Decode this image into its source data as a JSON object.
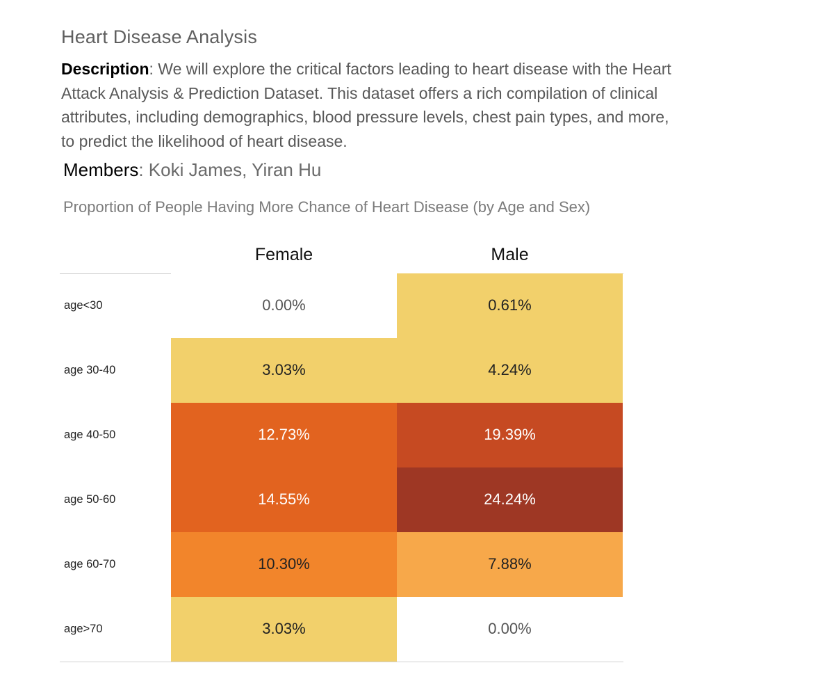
{
  "title": "Heart Disease Analysis",
  "description": {
    "label": "Description",
    "text": ": We will explore the critical factors leading to heart disease with the Heart Attack Analysis & Prediction Dataset. This dataset offers a rich compilation of clinical attributes, including demographics, blood pressure levels, chest pain types, and more, to predict the likelihood of heart disease."
  },
  "members": {
    "label": "Members",
    "text": ": Koki James, Yiran Hu"
  },
  "chart_data": {
    "type": "heatmap",
    "title": "Proportion of People Having More Chance of Heart Disease (by Age and Sex)",
    "columns": [
      "Female",
      "Male"
    ],
    "rows": [
      "age<30",
      "age 30-40",
      "age 40-50",
      "age 50-60",
      "age 60-70",
      "age>70"
    ],
    "values": [
      [
        0.0,
        0.61
      ],
      [
        3.03,
        4.24
      ],
      [
        12.73,
        19.39
      ],
      [
        14.55,
        24.24
      ],
      [
        10.3,
        7.88
      ],
      [
        3.03,
        0.0
      ]
    ],
    "labels": [
      [
        "0.00%",
        "0.61%"
      ],
      [
        "3.03%",
        "4.24%"
      ],
      [
        "12.73%",
        "19.39%"
      ],
      [
        "14.55%",
        "24.24%"
      ],
      [
        "10.30%",
        "7.88%"
      ],
      [
        "3.03%",
        "0.00%"
      ]
    ],
    "colors": [
      [
        "#ffffff",
        "#f2d06b"
      ],
      [
        "#f2d06b",
        "#f2d06b"
      ],
      [
        "#e2631f",
        "#c64a22"
      ],
      [
        "#e2631f",
        "#9e3724"
      ],
      [
        "#f2852b",
        "#f7a84a"
      ],
      [
        "#f2d06b",
        "#ffffff"
      ]
    ],
    "text_colors": [
      [
        "#555555",
        "#222222"
      ],
      [
        "#222222",
        "#222222"
      ],
      [
        "#ffffff",
        "#ffffff"
      ],
      [
        "#ffffff",
        "#ffffff"
      ],
      [
        "#222222",
        "#222222"
      ],
      [
        "#222222",
        "#555555"
      ]
    ]
  }
}
